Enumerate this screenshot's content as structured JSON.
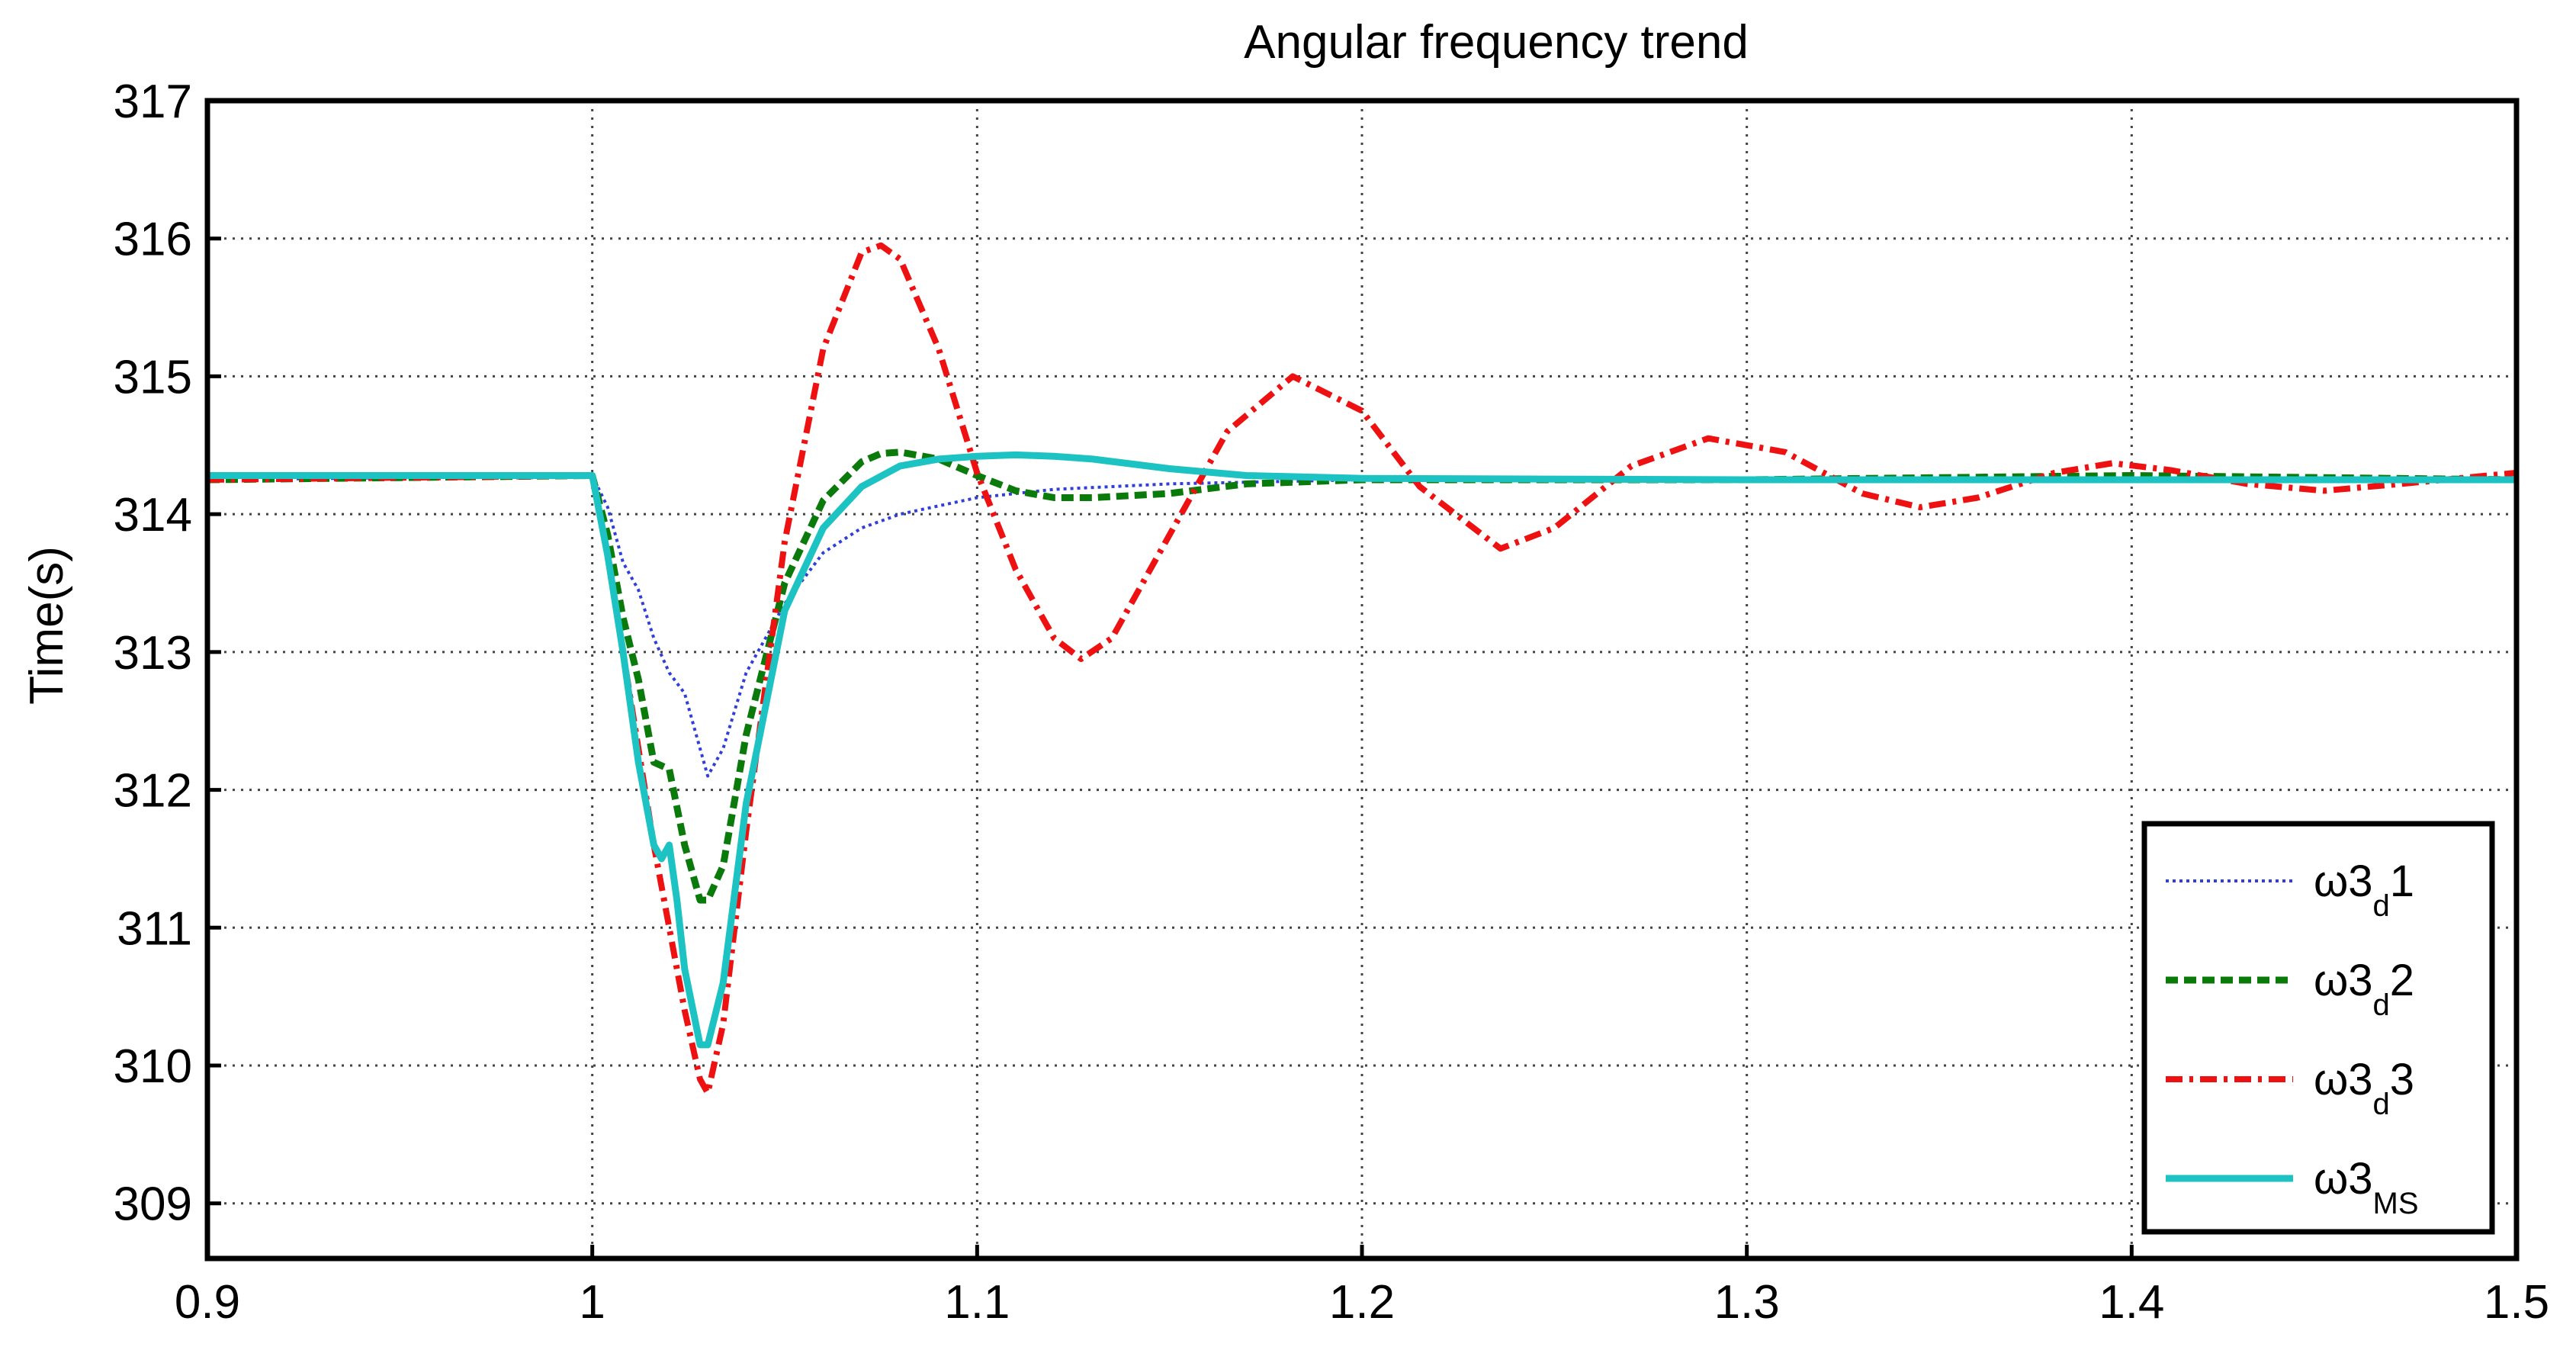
{
  "chart_data": {
    "type": "line",
    "title": "Angular frequency trend",
    "xlabel": "",
    "ylabel": "Time(s)",
    "xlim": [
      0.9,
      1.5
    ],
    "ylim": [
      308.6,
      317.0
    ],
    "xticks": [
      "0.9",
      "1",
      "1.1",
      "1.2",
      "1.3",
      "1.4",
      "1.5"
    ],
    "yticks": [
      "309",
      "310",
      "311",
      "312",
      "313",
      "314",
      "315",
      "316",
      "317"
    ],
    "grid": true,
    "legend_position": "bottom-right",
    "series": [
      {
        "name": "ω3d1",
        "label_main": "ω3",
        "label_sub": "d",
        "label_tail": "1",
        "color": "#2f3fd8",
        "style": "dotted",
        "x": [
          0.9,
          1.0,
          1.004,
          1.008,
          1.012,
          1.016,
          1.02,
          1.024,
          1.028,
          1.03,
          1.034,
          1.04,
          1.05,
          1.06,
          1.07,
          1.08,
          1.1,
          1.12,
          1.15,
          1.2,
          1.3,
          1.4,
          1.5
        ],
        "y": [
          314.25,
          314.28,
          314.05,
          313.65,
          313.45,
          313.1,
          312.85,
          312.7,
          312.3,
          312.1,
          312.3,
          312.85,
          313.35,
          313.72,
          313.9,
          314.0,
          314.12,
          314.18,
          314.22,
          314.25,
          314.25,
          314.25,
          314.25
        ]
      },
      {
        "name": "ω3d2",
        "label_main": "ω3",
        "label_sub": "d",
        "label_tail": "2",
        "color": "#0a7a0a",
        "style": "dashed",
        "x": [
          0.9,
          1.0,
          1.004,
          1.008,
          1.012,
          1.016,
          1.02,
          1.024,
          1.028,
          1.03,
          1.034,
          1.04,
          1.05,
          1.06,
          1.07,
          1.075,
          1.08,
          1.09,
          1.1,
          1.11,
          1.12,
          1.13,
          1.15,
          1.17,
          1.2,
          1.3,
          1.4,
          1.5
        ],
        "y": [
          314.25,
          314.28,
          313.85,
          313.25,
          312.8,
          312.2,
          312.15,
          311.6,
          311.2,
          311.2,
          311.45,
          312.4,
          313.5,
          314.1,
          314.38,
          314.44,
          314.45,
          314.4,
          314.28,
          314.17,
          314.12,
          314.12,
          314.15,
          314.22,
          314.25,
          314.25,
          314.28,
          314.25
        ]
      },
      {
        "name": "ω3d3",
        "label_main": "ω3",
        "label_sub": "d",
        "label_tail": "3",
        "color": "#ee1111",
        "style": "dashdot",
        "x": [
          0.9,
          1.0,
          1.004,
          1.008,
          1.012,
          1.016,
          1.02,
          1.024,
          1.028,
          1.03,
          1.034,
          1.04,
          1.05,
          1.06,
          1.07,
          1.075,
          1.08,
          1.09,
          1.1,
          1.11,
          1.12,
          1.127,
          1.135,
          1.15,
          1.165,
          1.182,
          1.2,
          1.215,
          1.236,
          1.25,
          1.27,
          1.29,
          1.31,
          1.33,
          1.345,
          1.36,
          1.38,
          1.395,
          1.41,
          1.43,
          1.45,
          1.47,
          1.5
        ],
        "y": [
          314.25,
          314.28,
          313.7,
          313.0,
          312.3,
          311.6,
          311.0,
          310.4,
          309.9,
          309.8,
          310.3,
          311.7,
          313.8,
          315.2,
          315.9,
          315.95,
          315.85,
          315.2,
          314.3,
          313.6,
          313.1,
          312.95,
          313.1,
          313.85,
          314.6,
          315.0,
          314.75,
          314.2,
          313.75,
          313.9,
          314.35,
          314.55,
          314.45,
          314.15,
          314.05,
          314.12,
          314.3,
          314.37,
          314.32,
          314.22,
          314.17,
          314.22,
          314.3
        ]
      },
      {
        "name": "ω3MS",
        "label_main": "ω3",
        "label_sub": "MS",
        "label_tail": "",
        "color": "#1dc3c3",
        "style": "solid",
        "x": [
          0.9,
          1.0,
          1.004,
          1.008,
          1.012,
          1.016,
          1.018,
          1.02,
          1.022,
          1.024,
          1.028,
          1.03,
          1.034,
          1.04,
          1.05,
          1.06,
          1.07,
          1.08,
          1.09,
          1.1,
          1.11,
          1.12,
          1.13,
          1.15,
          1.17,
          1.2,
          1.3,
          1.4,
          1.5
        ],
        "y": [
          314.28,
          314.28,
          313.7,
          313.0,
          312.2,
          311.6,
          311.5,
          311.6,
          311.2,
          310.7,
          310.15,
          310.15,
          310.6,
          311.9,
          313.3,
          313.9,
          314.2,
          314.35,
          314.4,
          314.42,
          314.43,
          314.42,
          314.4,
          314.33,
          314.28,
          314.26,
          314.25,
          314.25,
          314.25
        ]
      }
    ]
  }
}
